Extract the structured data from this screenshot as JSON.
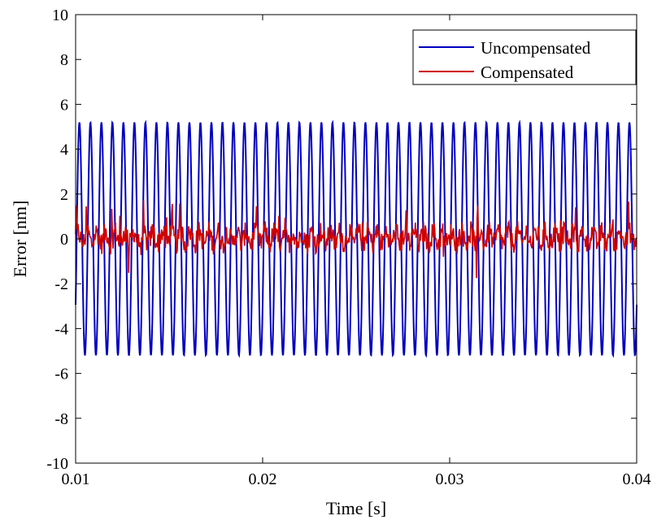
{
  "chart_data": {
    "type": "line",
    "xlabel": "Time [s]",
    "ylabel": "Error [nm]",
    "xlim": [
      0.01,
      0.04
    ],
    "ylim": [
      -10,
      10
    ],
    "xticks": [
      0.01,
      0.02,
      0.03,
      0.04
    ],
    "xtick_labels": [
      "0.01",
      "0.02",
      "0.03",
      "0.04"
    ],
    "yticks": [
      -10,
      -8,
      -6,
      -4,
      -2,
      0,
      2,
      4,
      6,
      8,
      10
    ],
    "ytick_labels": [
      "-10",
      "-8",
      "-6",
      "-4",
      "-2",
      "0",
      "2",
      "4",
      "6",
      "8",
      "10"
    ],
    "grid": false,
    "legend": "top-right",
    "series": [
      {
        "name": "Uncompensated",
        "color": "#0000c0",
        "kind": "sinusoid",
        "amplitude": 5.2,
        "cycles": 51,
        "mean": 0
      },
      {
        "name": "Compensated",
        "color": "#d00000",
        "kind": "noise",
        "mean": 0.05,
        "typical_range": [
          -0.6,
          0.9
        ],
        "max": 2.0,
        "min": -2.0
      }
    ]
  }
}
